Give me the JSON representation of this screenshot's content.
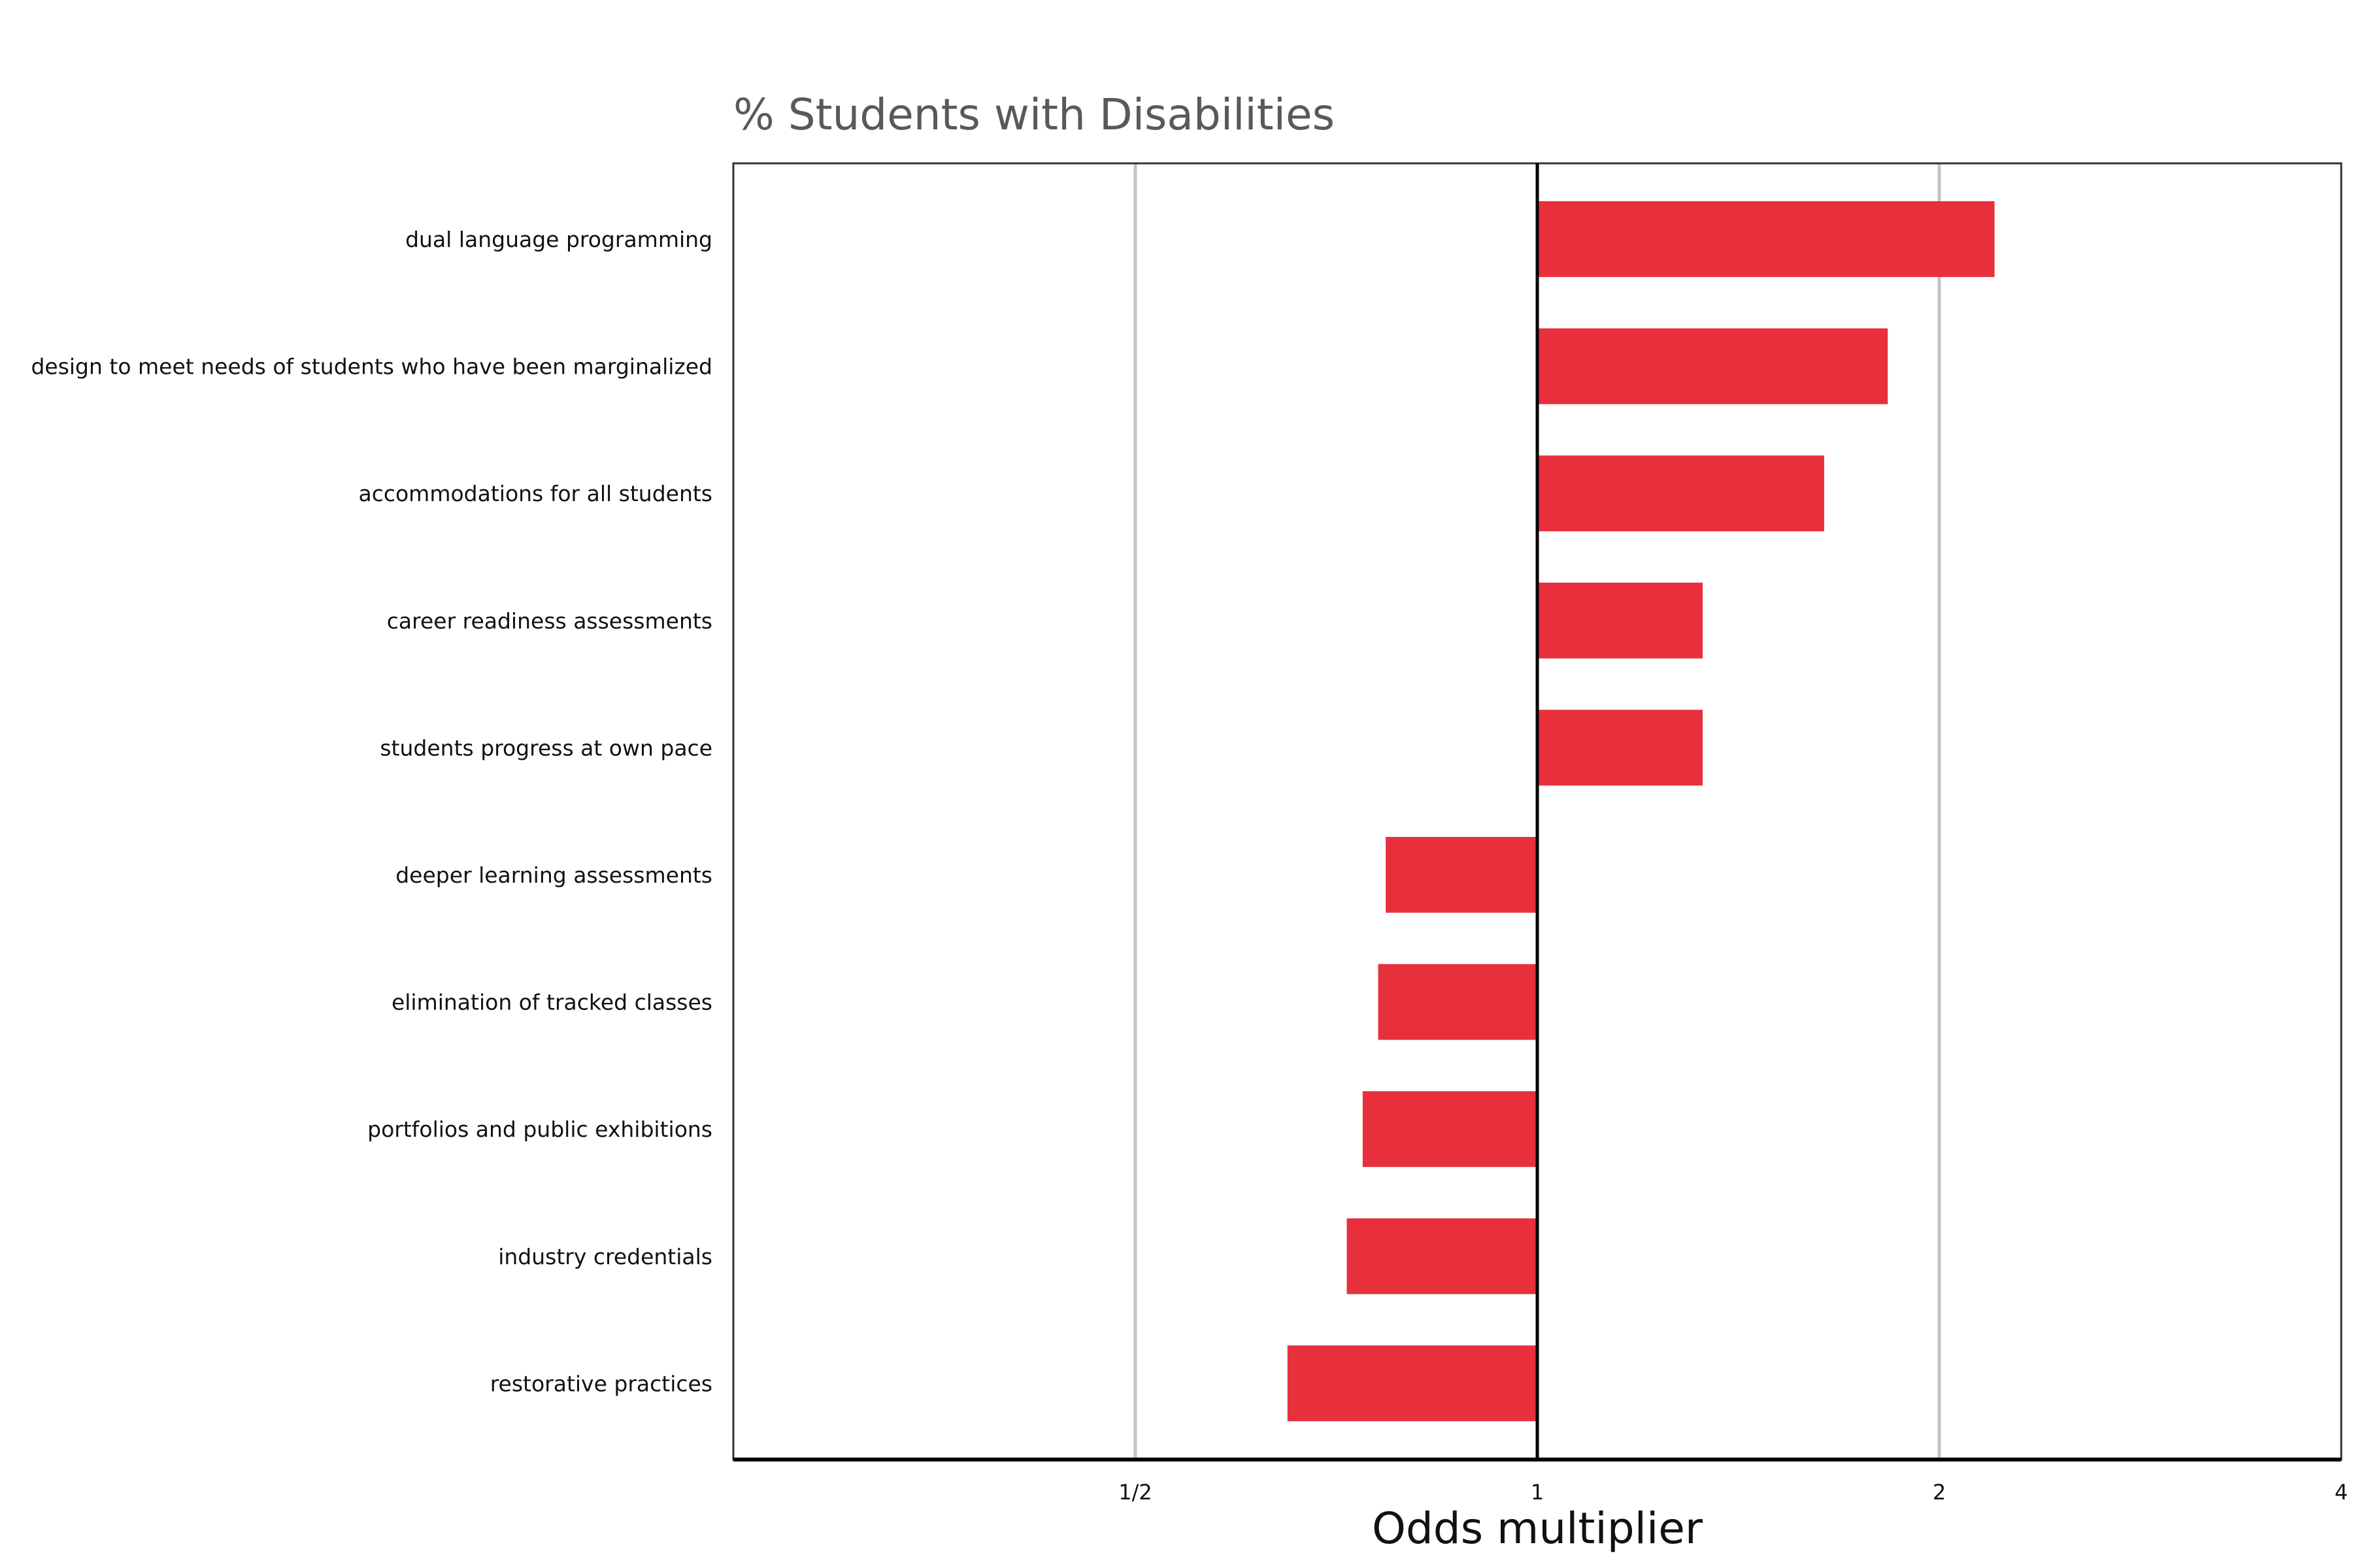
{
  "chart_data": {
    "type": "bar",
    "orientation": "horizontal",
    "title": "% Students with Disabilities",
    "xlabel": "Odds multiplier",
    "ylabel": "",
    "x_scale": "log2",
    "xlim": [
      0.25,
      4
    ],
    "x_ticks": [
      {
        "value": 0.5,
        "label": "1/2"
      },
      {
        "value": 1,
        "label": "1"
      },
      {
        "value": 2,
        "label": "2"
      },
      {
        "value": 4,
        "label": "4"
      }
    ],
    "reference_line": 1,
    "grid": "vertical gridlines at 1/2 and 2",
    "bar_color": "#E8303D",
    "categories": [
      "dual language programming",
      "design to meet needs of students who have been marginalized",
      "accommodations for all students",
      "career readiness assessments",
      "students progress at own pace",
      "deeper learning assessments",
      "elimination of tracked classes",
      "portfolios and public exhibitions",
      "industry credentials",
      "restorative practices"
    ],
    "values": [
      2.2,
      1.83,
      1.64,
      1.33,
      1.33,
      0.77,
      0.76,
      0.74,
      0.72,
      0.65
    ]
  }
}
